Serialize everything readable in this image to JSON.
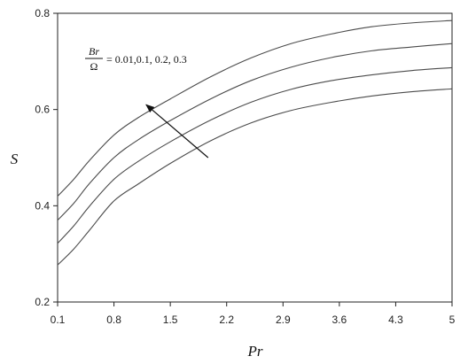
{
  "chart_data": {
    "type": "line",
    "xlabel": "Pr",
    "ylabel": "S",
    "xlim": [
      0.1,
      5
    ],
    "ylim": [
      0.2,
      0.8
    ],
    "x_ticks": [
      0.1,
      0.8,
      1.5,
      2.2,
      2.9,
      3.6,
      4.3,
      5
    ],
    "x_tick_labels": [
      "0.1",
      "0.8",
      "1.5",
      "2.2",
      "2.9",
      "3.6",
      "4.3",
      "5"
    ],
    "y_ticks": [
      0.2,
      0.4,
      0.6,
      0.8
    ],
    "y_tick_labels": [
      "0.2",
      "0.4",
      "0.6",
      "0.8"
    ],
    "grid": false,
    "x": [
      0.1,
      0.3,
      0.5,
      0.8,
      1.1,
      1.5,
      2.0,
      2.5,
      3.0,
      3.5,
      4.0,
      4.5,
      5.0
    ],
    "series": [
      {
        "values": [
          0.277,
          0.31,
          0.35,
          0.41,
          0.445,
          0.488,
          0.535,
          0.572,
          0.598,
          0.615,
          0.628,
          0.637,
          0.643
        ]
      },
      {
        "values": [
          0.322,
          0.358,
          0.4,
          0.455,
          0.492,
          0.533,
          0.578,
          0.615,
          0.642,
          0.66,
          0.672,
          0.681,
          0.687
        ]
      },
      {
        "values": [
          0.37,
          0.405,
          0.447,
          0.5,
          0.537,
          0.577,
          0.622,
          0.66,
          0.688,
          0.708,
          0.722,
          0.73,
          0.737
        ]
      },
      {
        "values": [
          0.42,
          0.455,
          0.495,
          0.547,
          0.583,
          0.622,
          0.668,
          0.707,
          0.737,
          0.757,
          0.772,
          0.78,
          0.785
        ]
      }
    ],
    "annotation": {
      "numerator": "Br",
      "denominator": "Ω",
      "values_text": "= 0.01,0.1, 0.2, 0.3",
      "arrow_from": [
        1.97,
        0.5
      ],
      "arrow_to": [
        1.2,
        0.61
      ]
    },
    "line_color": "#4a4a4a"
  }
}
